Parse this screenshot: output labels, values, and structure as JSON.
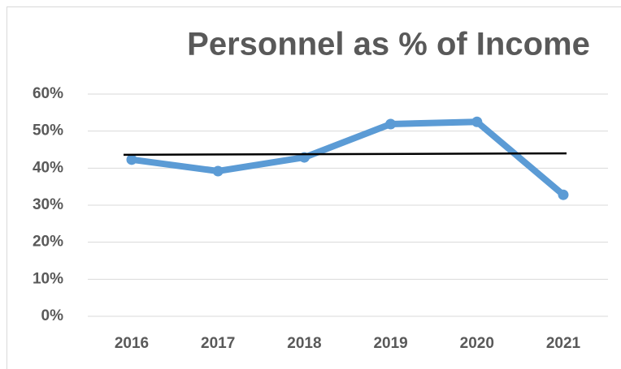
{
  "chart_data": {
    "type": "line",
    "title": "Personnel as % of Income",
    "categories": [
      "2016",
      "2017",
      "2018",
      "2019",
      "2020",
      "2021"
    ],
    "series": [
      {
        "color": "#5b9bd5",
        "values": [
          42.3,
          39.2,
          42.9,
          51.9,
          52.5,
          32.8
        ]
      }
    ],
    "trendline": {
      "color": "#000000",
      "values": [
        43.6,
        44.0
      ]
    },
    "ylim": [
      0,
      60
    ],
    "yticks": [
      {
        "value": 0,
        "label": "0%"
      },
      {
        "value": 10,
        "label": "10%"
      },
      {
        "value": 20,
        "label": "20%"
      },
      {
        "value": 30,
        "label": "30%"
      },
      {
        "value": 40,
        "label": "40%"
      },
      {
        "value": 50,
        "label": "50%"
      },
      {
        "value": 60,
        "label": "60%"
      }
    ],
    "grid": true
  }
}
